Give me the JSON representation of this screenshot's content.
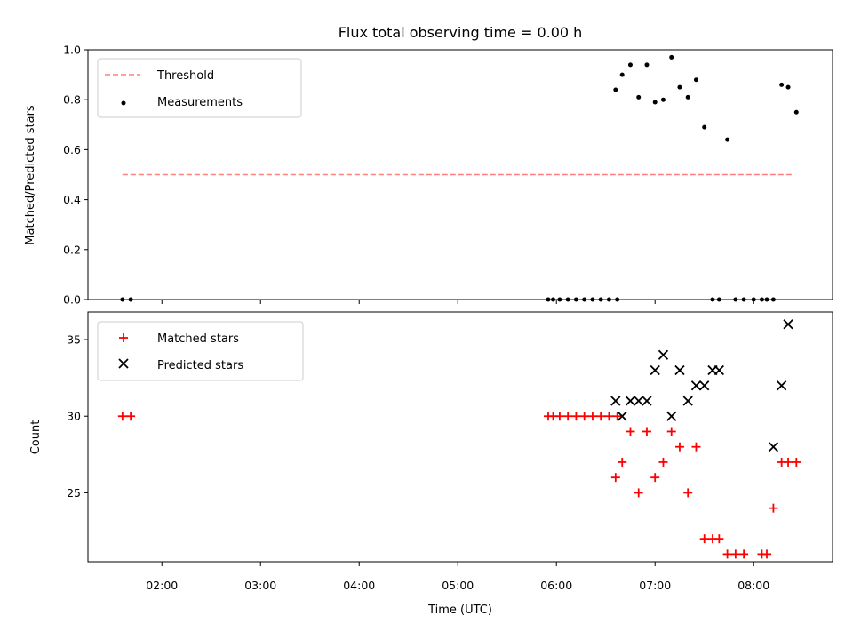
{
  "figure": {
    "title": "Flux total observing time = 0.00 h",
    "xlabel": "Time (UTC)"
  },
  "chart_data": [
    {
      "type": "scatter",
      "panel": "top",
      "ylabel": "Matched/Predicted stars",
      "xlim": [
        "01:15",
        "08:48"
      ],
      "ylim": [
        0,
        1.0
      ],
      "yticks": [
        0.0,
        0.2,
        0.4,
        0.6,
        0.8,
        1.0
      ],
      "ytick_labels": [
        "0.0",
        "0.2",
        "0.4",
        "0.6",
        "0.8",
        "1.0"
      ],
      "xticks": [
        "02:00",
        "03:00",
        "04:00",
        "05:00",
        "06:00",
        "07:00",
        "08:00"
      ],
      "legend_position": "upper-left",
      "threshold": {
        "name": "Threshold",
        "value": 0.5,
        "x_range": [
          "01:36",
          "08:24"
        ],
        "color": "#ff7f7f"
      },
      "series": [
        {
          "name": "Measurements",
          "color": "#000000",
          "marker": "dot",
          "x": [
            "01:36",
            "01:41",
            "05:55",
            "05:58",
            "06:02",
            "06:07",
            "06:12",
            "06:17",
            "06:22",
            "06:27",
            "06:32",
            "06:37",
            "06:36",
            "06:40",
            "06:45",
            "06:50",
            "06:55",
            "07:00",
            "07:05",
            "07:10",
            "07:15",
            "07:20",
            "07:25",
            "07:30",
            "07:35",
            "07:39",
            "07:44",
            "07:49",
            "07:54",
            "08:00",
            "08:05",
            "08:08",
            "08:12",
            "08:17",
            "08:21",
            "08:26"
          ],
          "y": [
            0,
            0,
            0,
            0,
            0,
            0,
            0,
            0,
            0,
            0,
            0,
            0,
            0.84,
            0.9,
            0.94,
            0.81,
            0.94,
            0.79,
            0.8,
            0.97,
            0.85,
            0.81,
            0.88,
            0.69,
            0,
            0,
            0.64,
            0,
            0,
            0,
            0,
            0,
            0,
            0.86,
            0.85,
            0.75
          ]
        }
      ]
    },
    {
      "type": "scatter",
      "panel": "bottom",
      "ylabel": "Count",
      "xlim": [
        "01:15",
        "08:48"
      ],
      "ylim": [
        20.5,
        36.8
      ],
      "yticks": [
        25,
        30,
        35
      ],
      "ytick_labels": [
        "25",
        "30",
        "35"
      ],
      "xticks": [
        "02:00",
        "03:00",
        "04:00",
        "05:00",
        "06:00",
        "07:00",
        "08:00"
      ],
      "legend_position": "upper-left",
      "series": [
        {
          "name": "Matched stars",
          "color": "#ff0000",
          "marker": "plus",
          "x": [
            "01:36",
            "01:41",
            "05:55",
            "05:58",
            "06:02",
            "06:07",
            "06:12",
            "06:17",
            "06:22",
            "06:27",
            "06:32",
            "06:37",
            "06:36",
            "06:40",
            "06:45",
            "06:50",
            "06:55",
            "07:00",
            "07:05",
            "07:10",
            "07:15",
            "07:20",
            "07:25",
            "07:30",
            "07:35",
            "07:39",
            "07:44",
            "07:49",
            "07:54",
            "08:05",
            "08:08",
            "08:12",
            "08:17",
            "08:21",
            "08:26"
          ],
          "y": [
            30,
            30,
            30,
            30,
            30,
            30,
            30,
            30,
            30,
            30,
            30,
            30,
            26,
            27,
            29,
            25,
            29,
            26,
            27,
            29,
            28,
            25,
            28,
            22,
            22,
            22,
            21,
            21,
            21,
            21,
            21,
            24,
            27,
            27,
            27
          ]
        },
        {
          "name": "Predicted stars",
          "color": "#000000",
          "marker": "x",
          "x": [
            "06:36",
            "06:40",
            "06:45",
            "06:50",
            "06:55",
            "07:00",
            "07:05",
            "07:10",
            "07:15",
            "07:20",
            "07:25",
            "07:30",
            "07:35",
            "07:39",
            "08:12",
            "08:17",
            "08:21"
          ],
          "y": [
            31,
            30,
            31,
            31,
            31,
            33,
            34,
            30,
            33,
            31,
            32,
            32,
            33,
            33,
            28,
            32,
            36
          ]
        }
      ]
    }
  ]
}
